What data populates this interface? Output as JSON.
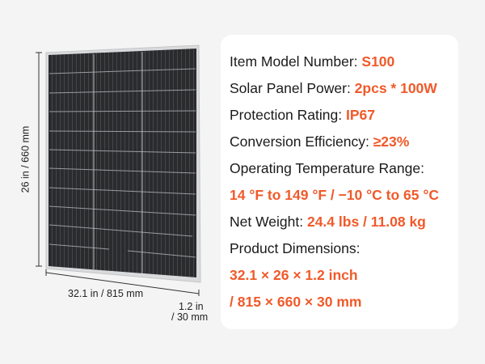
{
  "dimensions": {
    "height_label": "26 in / 660 mm",
    "width_label": "32.1 in / 815 mm",
    "depth_label_1": "1.2 in",
    "depth_label_2": "/ 30 mm"
  },
  "specs": [
    {
      "label": "Item Model Number: ",
      "value": "S100"
    },
    {
      "label": "Solar Panel Power: ",
      "value": "2pcs * 100W"
    },
    {
      "label": "Protection Rating: ",
      "value": "IP67"
    },
    {
      "label": "Conversion Efficiency: ",
      "value": "≥23%"
    },
    {
      "label": "Operating Temperature Range:",
      "value": ""
    },
    {
      "label": "",
      "value": "14 °F to 149 °F  / −10 °C to 65 °C"
    },
    {
      "label": "Net Weight: ",
      "value": "24.4 lbs / 11.08 kg"
    },
    {
      "label": "Product Dimensions:",
      "value": ""
    },
    {
      "label": "",
      "value": "32.1 × 26 × 1.2 inch"
    },
    {
      "label": "",
      "value": "/ 815 × 660 × 30 mm"
    }
  ],
  "colors": {
    "accent": "#f05a2a",
    "panel": "#2a2a2c",
    "background": "#f4f4f4"
  }
}
